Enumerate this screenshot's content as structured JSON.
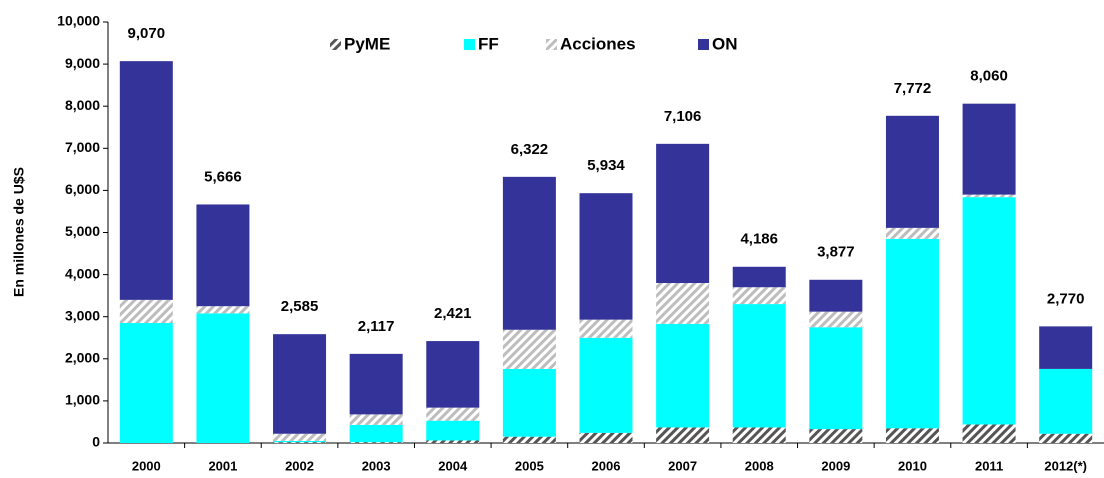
{
  "chart_data": {
    "type": "stacked_bar",
    "y_label": "En millones de U$S",
    "categories": [
      "2000",
      "2001",
      "2002",
      "2003",
      "2004",
      "2005",
      "2006",
      "2007",
      "2008",
      "2009",
      "2010",
      "2011",
      "2012(*)"
    ],
    "series": [
      {
        "name": "PyME",
        "color": "#555555",
        "hatch": true,
        "values": [
          0,
          0,
          20,
          20,
          60,
          150,
          240,
          370,
          370,
          330,
          350,
          440,
          220
        ]
      },
      {
        "name": "FF",
        "color": "#00ffff",
        "hatch": false,
        "values": [
          2850,
          3080,
          30,
          410,
          470,
          1610,
          2260,
          2460,
          2930,
          2420,
          4500,
          5400,
          1540
        ]
      },
      {
        "name": "Acciones",
        "color": "#bdbdbd",
        "hatch": true,
        "values": [
          550,
          170,
          170,
          250,
          310,
          930,
          430,
          970,
          400,
          370,
          260,
          60,
          0
        ]
      },
      {
        "name": "ON",
        "color": "#333399",
        "hatch": false,
        "values": [
          5670,
          2416,
          2365,
          1437,
          1581,
          3632,
          3004,
          3306,
          486,
          757,
          2662,
          2160,
          1010
        ]
      }
    ],
    "totals": [
      9070,
      5666,
      2585,
      2117,
      2421,
      6322,
      5934,
      7106,
      4186,
      3877,
      7772,
      8060,
      2770
    ],
    "total_labels": [
      "9,070",
      "5,666",
      "2,585",
      "2,117",
      "2,421",
      "6,322",
      "5,934",
      "7,106",
      "4,186",
      "3,877",
      "7,772",
      "8,060",
      "2,770"
    ],
    "ylim": [
      0,
      10000
    ],
    "yticks": [
      0,
      {
        "value": 1000,
        "label": "1,000"
      },
      {
        "value": 2000,
        "label": "2,000"
      },
      {
        "value": 3000,
        "label": "3,000"
      },
      {
        "value": 4000,
        "label": "4,000"
      },
      {
        "value": 5000,
        "label": "5,000"
      },
      {
        "value": 6000,
        "label": "6,000"
      },
      {
        "value": 7000,
        "label": "7,000"
      },
      {
        "value": 8000,
        "label": "8,000"
      },
      {
        "value": 9000,
        "label": "9,000"
      },
      {
        "value": 10000,
        "label": "10,000"
      }
    ],
    "legend": "top"
  }
}
